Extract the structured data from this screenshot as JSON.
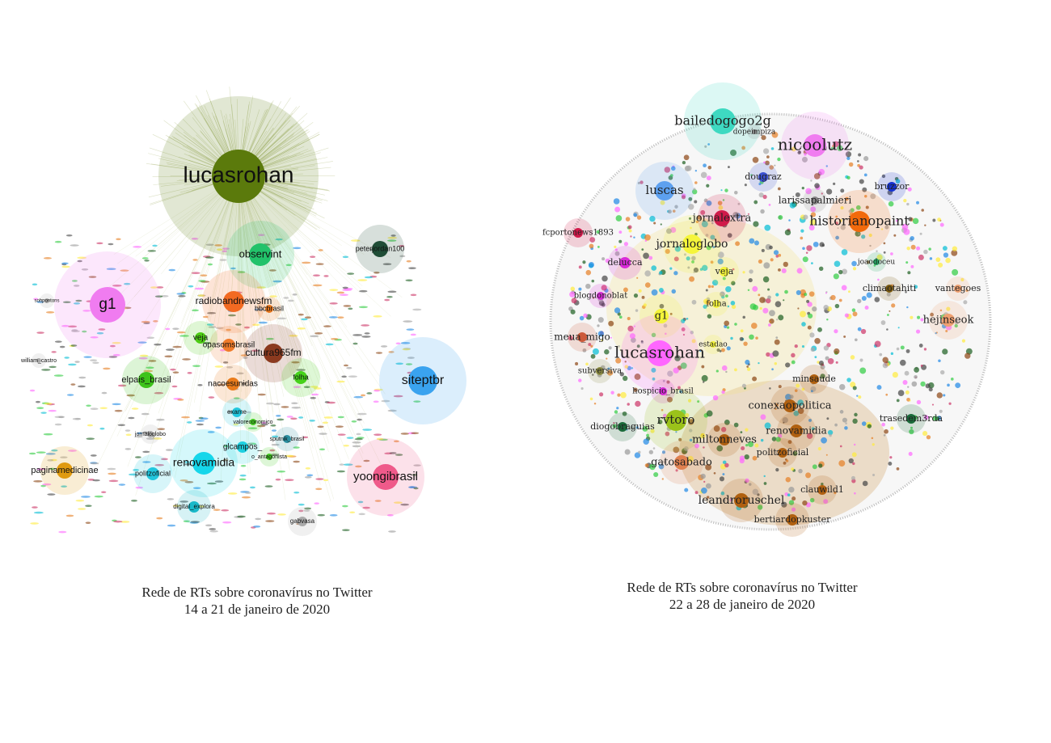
{
  "networks": [
    {
      "caption": [
        "Rede de RTs sobre coronavírus no Twitter",
        "14 a 21 de janeiro de 2020"
      ],
      "nodes": [
        "lucasrohan",
        "observint",
        "peterjordan100",
        "g1",
        "radiobandnewsfm",
        "bbcbrasil",
        "cultura965fm",
        "opasomsbrasil",
        "veja",
        "elpais_brasil",
        "nacoesunidas",
        "folha",
        "siteptbr",
        "renovamidia",
        "glcampos_",
        "politzoficial",
        "paginamedicinae",
        "yoongibrasil",
        "digital_explora",
        "gabvasa",
        "william_castro",
        "sohpontons",
        "exame",
        "valoreconomico",
        "sputnik_brasil",
        "o_antagonista",
        "jornaloglobo"
      ]
    },
    {
      "caption": [
        "Rede de RTs sobre coronavírus no Twitter",
        "22 a 28 de janeiro de 2020"
      ],
      "nodes": [
        "bailedogogo2g",
        "dopeimpiza",
        "nicoolutz",
        "luscas",
        "dougraz",
        "bruzzor",
        "jornalextra",
        "larissapalmieri",
        "historianopaint",
        "jornaloglobo",
        "fcportonews1893",
        "delucca",
        "veja",
        "joaodoceu",
        "climaotahiti",
        "vantegoes",
        "blogdonoblat",
        "g1",
        "folha",
        "hejinseok",
        "meua_migo",
        "lucasrohan",
        "estadao",
        "subversiva",
        "minsaude",
        "hospicio_brasil",
        "conexaopolitica",
        "rvtoro",
        "diogobraguias",
        "trasedem3rda",
        "renovamidia",
        "miltonneves",
        "politzoficial",
        "gatosabado",
        "leandroruschel",
        "clauwild1",
        "bertiardopkuster"
      ]
    }
  ]
}
